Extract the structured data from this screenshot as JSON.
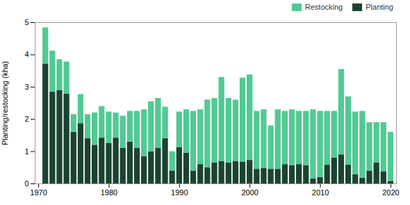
{
  "chart_data": {
    "type": "bar",
    "stacked": true,
    "x": [
      1971,
      1972,
      1973,
      1974,
      1975,
      1976,
      1977,
      1978,
      1979,
      1980,
      1981,
      1982,
      1983,
      1984,
      1985,
      1986,
      1987,
      1988,
      1989,
      1990,
      1991,
      1992,
      1993,
      1994,
      1995,
      1996,
      1997,
      1998,
      1999,
      2000,
      2001,
      2002,
      2003,
      2004,
      2005,
      2006,
      2007,
      2008,
      2009,
      2010,
      2011,
      2012,
      2013,
      2014,
      2015,
      2016,
      2017,
      2018,
      2019,
      2020
    ],
    "series": [
      {
        "name": "Planting",
        "color": "#1b4332",
        "values": [
          3.72,
          2.85,
          2.9,
          2.78,
          1.6,
          1.87,
          1.4,
          1.2,
          1.42,
          1.25,
          1.42,
          1.1,
          1.3,
          1.1,
          0.85,
          1.0,
          1.1,
          1.4,
          0.4,
          1.13,
          0.95,
          0.4,
          0.6,
          0.5,
          0.65,
          0.7,
          0.65,
          0.7,
          0.68,
          0.73,
          0.45,
          0.48,
          0.45,
          0.45,
          0.6,
          0.57,
          0.6,
          0.57,
          0.15,
          0.2,
          0.58,
          0.8,
          0.9,
          0.58,
          0.28,
          0.18,
          0.4,
          0.65,
          0.38,
          0.08
        ]
      },
      {
        "name": "Restocking",
        "color": "#52c993",
        "values": [
          1.12,
          1.27,
          0.95,
          1.0,
          0.55,
          0.9,
          0.75,
          1.0,
          0.98,
          0.98,
          0.78,
          1.0,
          0.95,
          1.15,
          1.45,
          1.55,
          1.55,
          0.98,
          0.6,
          1.1,
          1.35,
          1.85,
          1.7,
          2.1,
          2.0,
          2.6,
          2.0,
          1.9,
          2.6,
          2.65,
          1.8,
          1.82,
          1.35,
          1.85,
          1.65,
          1.73,
          1.65,
          1.68,
          2.15,
          2.05,
          1.67,
          1.45,
          2.65,
          2.12,
          1.95,
          2.07,
          1.5,
          1.25,
          1.52,
          1.52
        ]
      }
    ],
    "ylabel": "Planting/restocking (kha)",
    "xlim": [
      1969.5,
      2020.8
    ],
    "xticks": [
      1970,
      1980,
      1990,
      2000,
      2010,
      2020
    ],
    "ylim": [
      0,
      5
    ],
    "yticks": [
      0,
      1,
      2,
      3,
      4,
      5
    ],
    "grid": false,
    "legend": "upper right"
  }
}
